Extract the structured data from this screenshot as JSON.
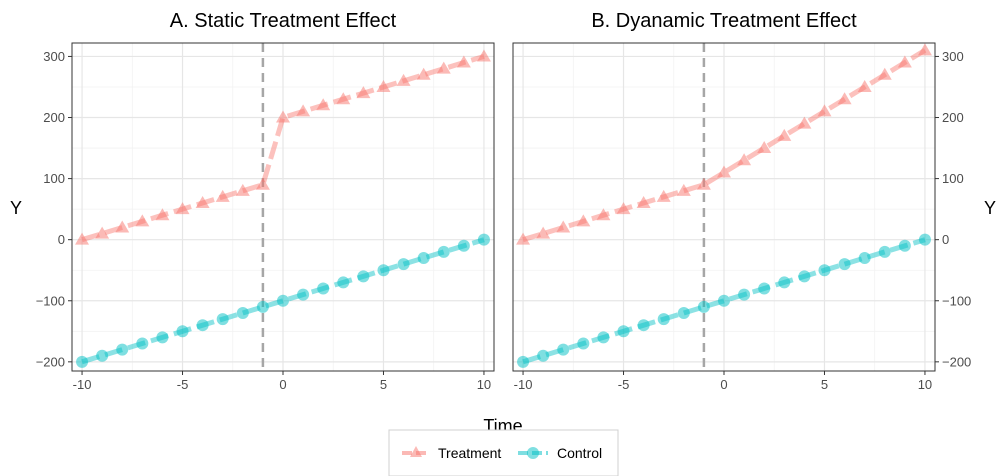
{
  "chart_data": [
    {
      "type": "line",
      "title": "A. Static Treatment Effect",
      "xlabel": "Time",
      "ylabel": "Y",
      "xlim": [
        -10.5,
        10.5
      ],
      "ylim": [
        -215,
        322
      ],
      "xticks": [
        -10,
        -5,
        0,
        5,
        10
      ],
      "yticks": [
        -200,
        -100,
        0,
        100,
        200,
        300
      ],
      "vline_x": -1,
      "y_axis_side": "left",
      "x": [
        -10,
        -9,
        -8,
        -7,
        -6,
        -5,
        -4,
        -3,
        -2,
        -1,
        0,
        1,
        2,
        3,
        4,
        5,
        6,
        7,
        8,
        9,
        10
      ],
      "series": [
        {
          "name": "Treatment",
          "values": [
            0,
            10,
            20,
            30,
            40,
            50,
            60,
            70,
            80,
            90,
            200,
            210,
            220,
            230,
            240,
            250,
            260,
            270,
            280,
            290,
            300
          ]
        },
        {
          "name": "Control",
          "values": [
            -200,
            -190,
            -180,
            -170,
            -160,
            -150,
            -140,
            -130,
            -120,
            -110,
            -100,
            -90,
            -80,
            -70,
            -60,
            -50,
            -40,
            -30,
            -20,
            -10,
            0
          ]
        }
      ]
    },
    {
      "type": "line",
      "title": "B. Dyanamic Treatment Effect",
      "xlabel": "Time",
      "ylabel": "Y",
      "xlim": [
        -10.5,
        10.5
      ],
      "ylim": [
        -215,
        322
      ],
      "xticks": [
        -10,
        -5,
        0,
        5,
        10
      ],
      "yticks": [
        -200,
        -100,
        0,
        100,
        200,
        300
      ],
      "vline_x": -1,
      "y_axis_side": "right",
      "x": [
        -10,
        -9,
        -8,
        -7,
        -6,
        -5,
        -4,
        -3,
        -2,
        -1,
        0,
        1,
        2,
        3,
        4,
        5,
        6,
        7,
        8,
        9,
        10
      ],
      "series": [
        {
          "name": "Treatment",
          "values": [
            0,
            10,
            20,
            30,
            40,
            50,
            60,
            70,
            80,
            90,
            110,
            130,
            150,
            170,
            190,
            210,
            230,
            250,
            270,
            290,
            310
          ]
        },
        {
          "name": "Control",
          "values": [
            -200,
            -190,
            -180,
            -170,
            -160,
            -150,
            -140,
            -130,
            -120,
            -110,
            -100,
            -90,
            -80,
            -70,
            -60,
            -50,
            -40,
            -30,
            -20,
            -10,
            0
          ]
        }
      ]
    }
  ],
  "shared": {
    "xlabel": "Time",
    "legend": {
      "placement": "bottom",
      "entries": [
        {
          "name": "Treatment",
          "color": "#F8766D",
          "marker": "triangle"
        },
        {
          "name": "Control",
          "color": "#00BFC4",
          "marker": "circle"
        }
      ]
    }
  },
  "colors": {
    "treatment": "#F8766D",
    "control": "#00BFC4",
    "vline": "#a6a6a6"
  }
}
